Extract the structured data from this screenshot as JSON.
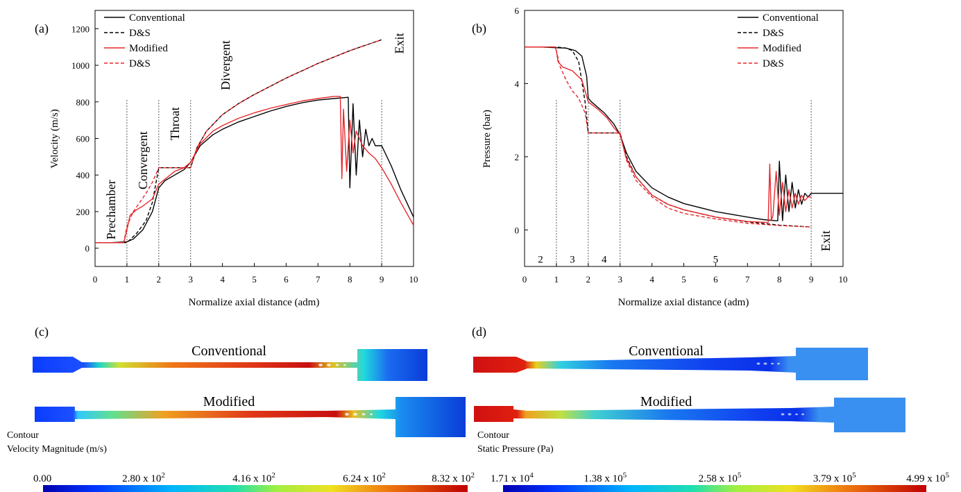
{
  "colors": {
    "conventional": "#000000",
    "modified": "#e8262a"
  },
  "panels": {
    "a": "(a)",
    "b": "(b)",
    "c": "(c)",
    "d": "(d)"
  },
  "contours": {
    "c": {
      "top_label": "Conventional",
      "bottom_label": "Modified",
      "legend_title_1": "Contour",
      "legend_title_2": "Velocity Magnitude (m/s)",
      "colorbar_ticks": [
        {
          "mant": "0.00",
          "exp": ""
        },
        {
          "mant": "2.80 x 10",
          "exp": "2"
        },
        {
          "mant": "4.16 x 10",
          "exp": "2"
        },
        {
          "mant": "6.24 x 10",
          "exp": "2"
        },
        {
          "mant": "8.32 x 10",
          "exp": "2"
        }
      ]
    },
    "d": {
      "top_label": "Conventional",
      "bottom_label": "Modified",
      "legend_title_1": "Contour",
      "legend_title_2": "Static Pressure (Pa)",
      "colorbar_ticks": [
        {
          "mant": "1.71 x 10",
          "exp": "4"
        },
        {
          "mant": "1.38 x 10",
          "exp": "5"
        },
        {
          "mant": "2.58 x 10",
          "exp": "5"
        },
        {
          "mant": "3.79 x 10",
          "exp": "5"
        },
        {
          "mant": "4.99 x 10",
          "exp": "5"
        }
      ]
    }
  },
  "chart_data": [
    {
      "type": "line",
      "xlabel": "Normalize axial distance (adm)",
      "ylabel": "Velocity (m/s)",
      "xlim": [
        0,
        10
      ],
      "ylim": [
        -100,
        1300
      ],
      "xticks": [
        "0",
        "1",
        "2",
        "3",
        "4",
        "5",
        "6",
        "7",
        "8",
        "9",
        "10"
      ],
      "yticks": [
        "0",
        "200",
        "400",
        "600",
        "800",
        "1000",
        "1200"
      ],
      "vlines": [
        1,
        2,
        3,
        9
      ],
      "region_labels": [
        {
          "text": "Prechamber",
          "x": 0.5,
          "y": 210
        },
        {
          "text": "Convergent",
          "x": 1.5,
          "y": 480
        },
        {
          "text": "Throat",
          "x": 2.5,
          "y": 680
        },
        {
          "text": "Divergent",
          "x": 4.1,
          "y": 1000
        },
        {
          "text": "Exit",
          "x": 9.55,
          "y": 1120
        }
      ],
      "legend": [
        "Conventional",
        "D&S",
        "Modified",
        "D&S"
      ],
      "series": [
        {
          "name": "Conventional",
          "style": "solid",
          "color": "conventional",
          "x": [
            0,
            0.5,
            1,
            1.2,
            1.5,
            1.8,
            2,
            2.2,
            2.5,
            2.8,
            3,
            3.3,
            3.7,
            4,
            4.5,
            5,
            5.5,
            6,
            6.5,
            7,
            7.5,
            7.95,
            8.0,
            8.1,
            8.2,
            8.3,
            8.4,
            8.5,
            8.6,
            8.7,
            8.8,
            8.9,
            9,
            9.3,
            9.6,
            10
          ],
          "y": [
            30,
            30,
            35,
            50,
            100,
            200,
            330,
            370,
            400,
            430,
            470,
            560,
            620,
            650,
            690,
            720,
            750,
            775,
            795,
            810,
            818,
            825,
            330,
            790,
            400,
            700,
            500,
            650,
            560,
            600,
            560,
            560,
            560,
            450,
            320,
            170
          ]
        },
        {
          "name": "D&S",
          "style": "dash",
          "color": "conventional",
          "x": [
            0,
            0.5,
            1,
            1.3,
            1.6,
            1.8,
            2,
            2.5,
            3,
            3.2,
            3.5,
            4,
            4.5,
            5,
            5.5,
            6,
            6.5,
            7,
            7.5,
            8,
            8.5,
            9
          ],
          "y": [
            30,
            30,
            30,
            80,
            150,
            250,
            440,
            440,
            440,
            550,
            640,
            730,
            790,
            840,
            885,
            930,
            970,
            1010,
            1045,
            1080,
            1110,
            1140
          ]
        },
        {
          "name": "Modified",
          "style": "solid",
          "color": "modified",
          "x": [
            0,
            0.5,
            0.9,
            1,
            1.1,
            1.3,
            1.5,
            1.8,
            2,
            2.5,
            2.8,
            3,
            3.3,
            3.7,
            4,
            4.5,
            5,
            5.5,
            6,
            6.5,
            7,
            7.5,
            7.7,
            7.75,
            7.8,
            7.9,
            8,
            8.1,
            8.2,
            8.4,
            8.6,
            8.8,
            9,
            9.3,
            9.6,
            10
          ],
          "y": [
            30,
            30,
            30,
            100,
            180,
            210,
            230,
            270,
            350,
            420,
            440,
            470,
            570,
            640,
            670,
            710,
            740,
            765,
            785,
            805,
            818,
            830,
            830,
            380,
            760,
            420,
            700,
            520,
            640,
            560,
            520,
            490,
            440,
            350,
            250,
            125
          ]
        },
        {
          "name": "D&S",
          "style": "dash",
          "color": "modified",
          "x": [
            0,
            0.5,
            0.9,
            1,
            1.2,
            1.4,
            1.6,
            1.8,
            2,
            2.5,
            3,
            3.2,
            3.5,
            4,
            4.5,
            5,
            5.5,
            6,
            6.5,
            7,
            7.5,
            8,
            8.5,
            9
          ],
          "y": [
            30,
            30,
            30,
            120,
            200,
            250,
            300,
            360,
            440,
            440,
            440,
            550,
            640,
            730,
            790,
            840,
            885,
            930,
            970,
            1010,
            1045,
            1080,
            1110,
            1140
          ]
        }
      ]
    },
    {
      "type": "line",
      "xlabel": "Normalize axial distance (adm)",
      "ylabel": "Pressure (bar)",
      "xlim": [
        0,
        10
      ],
      "ylim": [
        -1,
        6
      ],
      "xticks": [
        "0",
        "1",
        "2",
        "3",
        "4",
        "5",
        "6",
        "7",
        "8",
        "9",
        "10"
      ],
      "yticks": [
        "0",
        "2",
        "4",
        "6"
      ],
      "vlines": [
        1,
        2,
        3,
        9
      ],
      "region_labels": [
        {
          "text": "2",
          "x": 0.5,
          "y": -0.8
        },
        {
          "text": "3",
          "x": 1.5,
          "y": -0.8
        },
        {
          "text": "4",
          "x": 2.5,
          "y": -0.8
        },
        {
          "text": "5",
          "x": 6.0,
          "y": -0.8
        },
        {
          "text": "Exit",
          "x": 9.45,
          "y": -0.3
        }
      ],
      "legend": [
        "Conventional",
        "D&S",
        "Modified",
        "D&S"
      ],
      "series": [
        {
          "name": "Conventional",
          "style": "solid",
          "color": "conventional",
          "x": [
            0,
            0.5,
            1,
            1.3,
            1.6,
            1.8,
            1.95,
            2,
            2.1,
            2.5,
            2.8,
            3,
            3.2,
            3.5,
            4,
            4.5,
            5,
            6,
            7,
            7.5,
            7.9,
            7.95,
            8.0,
            8.1,
            8.2,
            8.3,
            8.4,
            8.5,
            8.6,
            8.7,
            8.8,
            8.9,
            9,
            9.5,
            10
          ],
          "y": [
            5,
            5,
            4.98,
            4.97,
            4.9,
            4.75,
            4.2,
            3.6,
            3.5,
            3.2,
            2.9,
            2.6,
            2.1,
            1.6,
            1.15,
            0.9,
            0.72,
            0.5,
            0.35,
            0.28,
            0.25,
            0.25,
            1.88,
            0.25,
            1.5,
            0.5,
            1.3,
            0.6,
            1.1,
            0.7,
            1.0,
            0.9,
            1.0,
            1.0,
            1.0
          ]
        },
        {
          "name": "D&S",
          "style": "dash",
          "color": "conventional",
          "x": [
            0,
            0.5,
            1,
            1.3,
            1.5,
            1.7,
            1.9,
            2,
            2.5,
            3,
            3.2,
            3.5,
            4,
            4.5,
            5,
            6,
            7,
            8,
            9
          ],
          "y": [
            5,
            5,
            5,
            4.97,
            4.9,
            4.6,
            3.5,
            2.65,
            2.65,
            2.65,
            2.0,
            1.45,
            0.95,
            0.7,
            0.55,
            0.35,
            0.22,
            0.13,
            0.08
          ]
        },
        {
          "name": "Modified",
          "style": "solid",
          "color": "modified",
          "x": [
            0,
            0.5,
            0.95,
            1,
            1.05,
            1.2,
            1.5,
            1.8,
            2,
            2.3,
            2.6,
            2.8,
            3,
            3.2,
            3.5,
            4,
            4.5,
            5,
            6,
            7,
            7.65,
            7.7,
            7.75,
            7.8,
            7.9,
            8.0,
            8.1,
            8.2,
            8.3,
            8.4,
            8.5,
            8.6,
            8.7,
            8.8,
            8.9,
            9
          ],
          "y": [
            5,
            5,
            5,
            4.9,
            4.6,
            4.45,
            4.35,
            4.1,
            3.5,
            3.3,
            3.05,
            2.8,
            2.6,
            1.95,
            1.45,
            0.95,
            0.7,
            0.55,
            0.35,
            0.23,
            0.2,
            1.8,
            0.25,
            0.4,
            1.6,
            0.4,
            1.3,
            0.5,
            1.1,
            0.6,
            1.0,
            0.7,
            0.95,
            0.8,
            0.9,
            0.9
          ]
        },
        {
          "name": "D&S",
          "style": "dash",
          "color": "modified",
          "x": [
            0,
            0.5,
            0.95,
            1,
            1.1,
            1.3,
            1.5,
            1.7,
            1.9,
            2,
            2.5,
            3,
            3.2,
            3.5,
            4,
            4.5,
            5,
            6,
            7,
            8,
            9
          ],
          "y": [
            5,
            5,
            5,
            4.9,
            4.5,
            4.1,
            3.8,
            3.6,
            3.2,
            2.65,
            2.65,
            2.65,
            1.9,
            1.35,
            0.9,
            0.6,
            0.45,
            0.3,
            0.18,
            0.12,
            0.08
          ]
        }
      ]
    }
  ]
}
